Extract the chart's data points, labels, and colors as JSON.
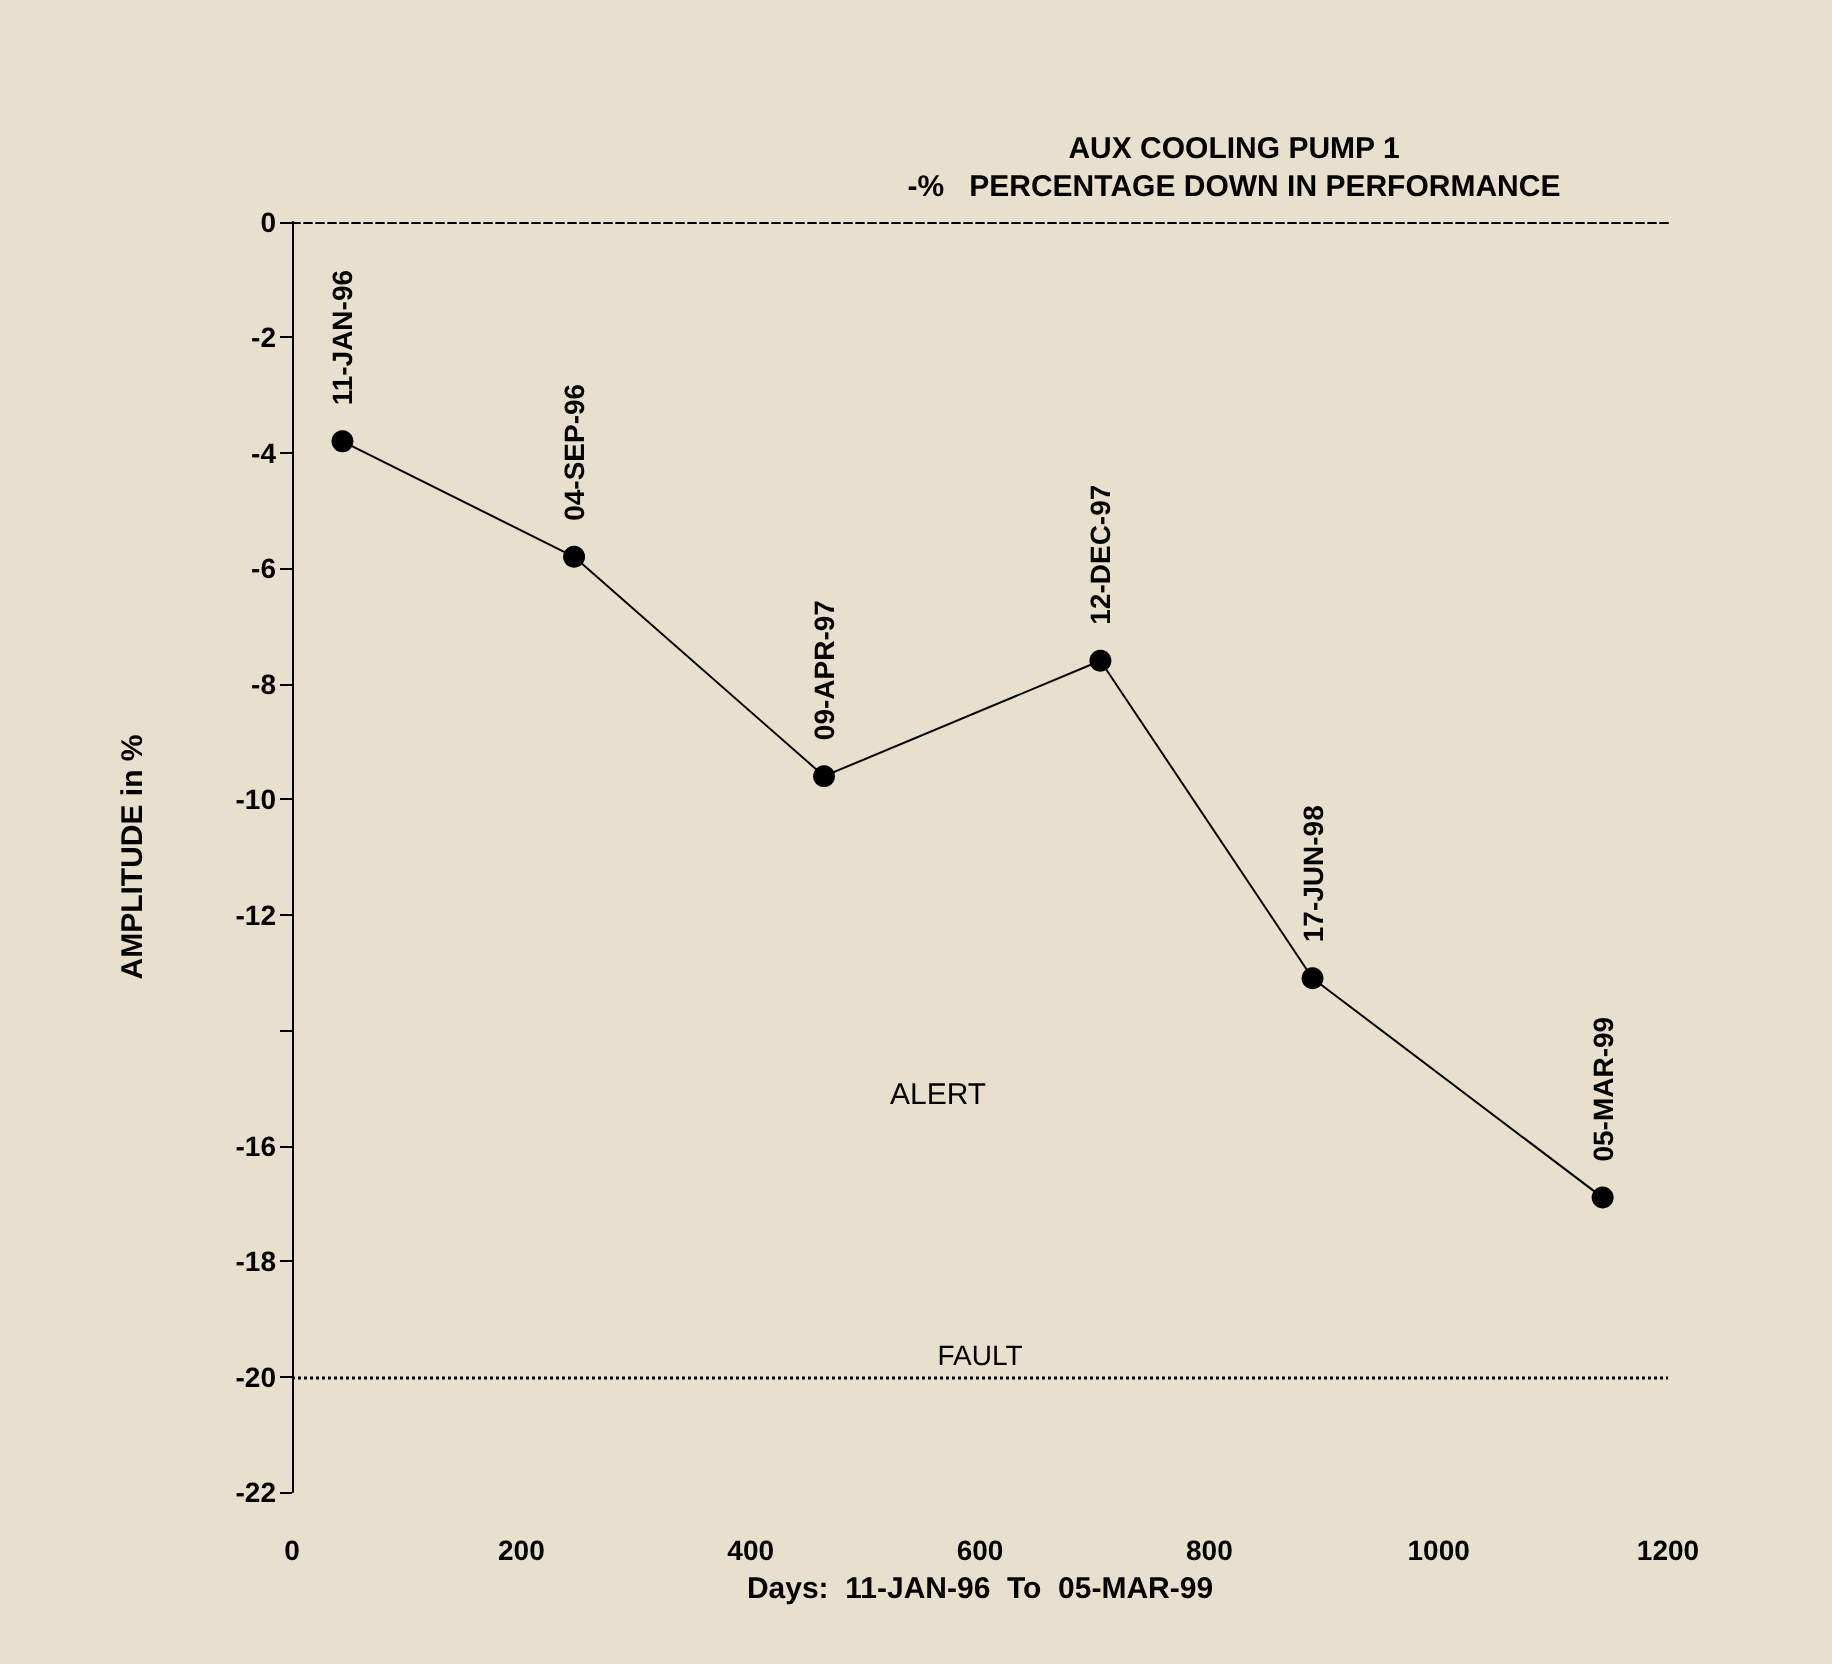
{
  "chart_data": {
    "type": "line",
    "title": "AUX COOLING PUMP 1",
    "subtitle": "-%   PERCENTAGE DOWN IN PERFORMANCE",
    "xlabel": "Days:  11-JAN-96  To  05-MAR-99",
    "ylabel": "AMPLITUDE in %",
    "x": [
      44,
      246,
      464,
      705,
      890,
      1143
    ],
    "series": [
      {
        "color": "#000000",
        "values": [
          -3.8,
          -5.8,
          -9.6,
          -7.6,
          -13.1,
          -16.9
        ]
      }
    ],
    "xlim": [
      0,
      1200
    ],
    "xticks": [
      0,
      200,
      400,
      600,
      800,
      1000,
      1200
    ],
    "ylim": [
      -22,
      0
    ],
    "yticks": [
      0,
      -2,
      -4,
      -6,
      -8,
      -10,
      -12,
      {
        "value": -14,
        "label": null
      },
      -16,
      -18,
      -20,
      -22
    ],
    "ref_lines": [
      {
        "axis": "y",
        "value": -20,
        "label": "FAULT",
        "color": "#000000",
        "line_style": "dotted"
      }
    ],
    "annotations": [
      {
        "text": "11-JAN-96",
        "x": 44,
        "y": -3.8
      },
      {
        "text": "04-SEP-96",
        "x": 246,
        "y": -5.8
      },
      {
        "text": "09-APR-97",
        "x": 464,
        "y": -9.6
      },
      {
        "text": "12-DEC-97",
        "x": 705,
        "y": -7.6
      },
      {
        "text": "17-JUN-98",
        "x": 890,
        "y": -13.1
      },
      {
        "text": "05-MAR-99",
        "x": 1143,
        "y": -16.9
      },
      "ALERT"
    ],
    "grid": false,
    "marker": "circle",
    "line_style": "solid"
  }
}
